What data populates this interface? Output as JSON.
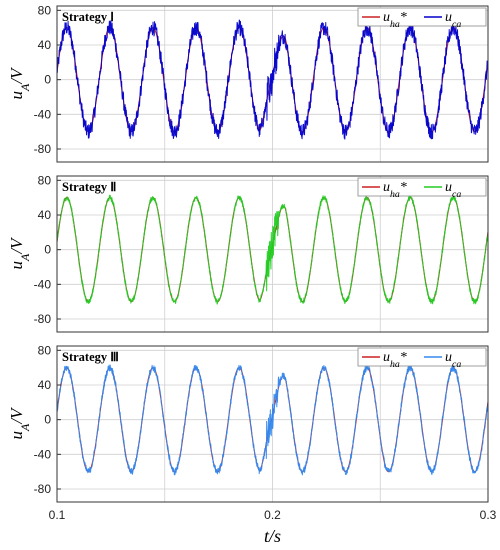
{
  "chart_data": [
    {
      "type": "line",
      "title": "Strategy Ⅰ",
      "ylabel": "uA/V",
      "xlim": [
        0.1,
        0.3
      ],
      "ylim": [
        -95,
        85
      ],
      "yticks": [
        80,
        40,
        0,
        -40,
        -80
      ],
      "ytick_labels": [
        "80",
        "40",
        "0",
        "-40",
        "-80"
      ],
      "xticks": [
        0.1,
        0.15,
        0.2,
        0.25,
        0.3
      ],
      "grid": true,
      "legend": "top-right",
      "frequency_hz": 50,
      "series": [
        {
          "name": "uha*",
          "legend_label": "uha*",
          "color": "#cc2222",
          "amplitude": 60,
          "disturbance_at": 0.2,
          "noise": 0
        },
        {
          "name": "uca",
          "legend_label": "uca",
          "color": "#0000cc",
          "amplitude": 60,
          "disturbance_at": 0.2,
          "noise": 9
        }
      ]
    },
    {
      "type": "line",
      "title": "Strategy Ⅱ",
      "ylabel": "uA/V",
      "xlim": [
        0.1,
        0.3
      ],
      "ylim": [
        -95,
        85
      ],
      "yticks": [
        80,
        40,
        0,
        -40,
        -80
      ],
      "ytick_labels": [
        "80",
        "40",
        "0",
        "-40",
        "-80"
      ],
      "xticks": [
        0.1,
        0.15,
        0.2,
        0.25,
        0.3
      ],
      "grid": true,
      "legend": "top-right",
      "frequency_hz": 50,
      "series": [
        {
          "name": "uha*",
          "legend_label": "uha*",
          "color": "#cc2222",
          "amplitude": 60,
          "disturbance_at": 0.2,
          "noise": 0
        },
        {
          "name": "uca",
          "legend_label": "uca",
          "color": "#22cc22",
          "amplitude": 60,
          "disturbance_at": 0.2,
          "noise": 3
        }
      ]
    },
    {
      "type": "line",
      "title": "Strategy Ⅲ",
      "ylabel": "uA/V",
      "xlabel": "t/s",
      "xlim": [
        0.1,
        0.3
      ],
      "ylim": [
        -95,
        85
      ],
      "yticks": [
        80,
        40,
        0,
        -40,
        -80
      ],
      "ytick_labels": [
        "80",
        "40",
        "0",
        "-40",
        "-80"
      ],
      "xticks": [
        0.1,
        0.15,
        0.2,
        0.25,
        0.3
      ],
      "xtick_labels": [
        "0.1",
        "",
        "0.2",
        "",
        "0.3"
      ],
      "grid": true,
      "legend": "top-right",
      "frequency_hz": 50,
      "series": [
        {
          "name": "uha*",
          "legend_label": "uha*",
          "color": "#cc2222",
          "amplitude": 60,
          "disturbance_at": 0.2,
          "noise": 0
        },
        {
          "name": "uca",
          "legend_label": "uca",
          "color": "#3388ee",
          "amplitude": 60,
          "disturbance_at": 0.2,
          "noise": 4
        }
      ]
    }
  ]
}
